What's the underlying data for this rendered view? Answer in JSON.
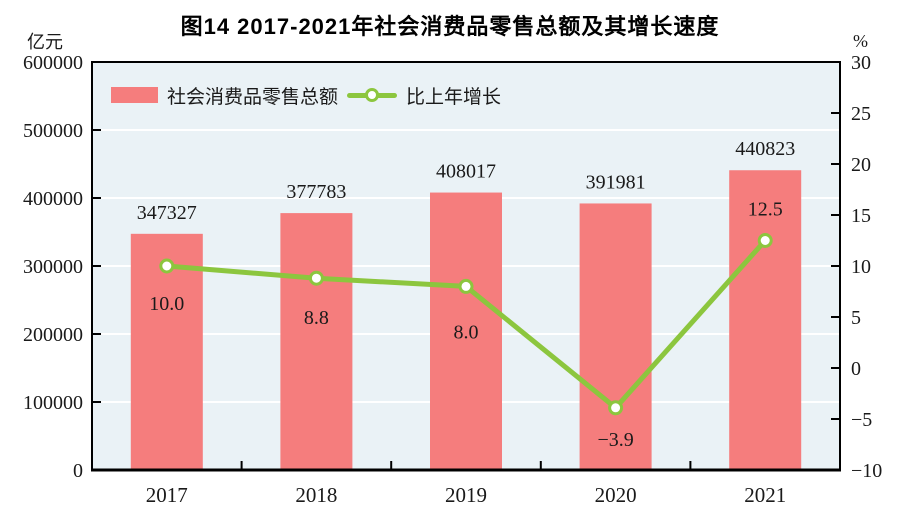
{
  "title": "图14  2017-2021年社会消费品零售总额及其增长速度",
  "left_axis": {
    "unit": "亿元",
    "tick_labels": [
      "600000",
      "500000",
      "400000",
      "300000",
      "200000",
      "100000",
      "0"
    ]
  },
  "right_axis": {
    "unit": "%",
    "tick_labels": [
      "30",
      "25",
      "20",
      "15",
      "10",
      "5",
      "0",
      "−5",
      "−10"
    ]
  },
  "legend": {
    "bar_label": "社会消费品零售总额",
    "line_label": "比上年增长"
  },
  "colors": {
    "bar": "#F57D7D",
    "line": "#8CC63E",
    "marker_fill": "#FFFFFF",
    "plot_bg": "#EAF2F6",
    "grid": "#FFFFFF",
    "axis": "#000000",
    "text": "#1A1A1A"
  },
  "chart_data": {
    "type": "bar",
    "title": "图14  2017-2021年社会消费品零售总额及其增长速度",
    "categories": [
      "2017",
      "2018",
      "2019",
      "2020",
      "2021"
    ],
    "series": [
      {
        "name": "社会消费品零售总额",
        "type": "bar",
        "axis": "left",
        "unit": "亿元",
        "color": "#F57D7D",
        "values": [
          347327,
          377783,
          408017,
          391981,
          440823
        ]
      },
      {
        "name": "比上年增长",
        "type": "line",
        "axis": "right",
        "unit": "%",
        "color": "#8CC63E",
        "values": [
          10.0,
          8.8,
          8.0,
          -3.9,
          12.5
        ],
        "value_label_positions": [
          "below",
          "below",
          "below",
          "below",
          "above"
        ]
      }
    ],
    "left_ylim": [
      0,
      600000
    ],
    "left_tick_step": 100000,
    "right_ylim": [
      -10,
      30
    ],
    "right_tick_step": 5,
    "grid": true,
    "legend_position": "top-left-inside"
  }
}
